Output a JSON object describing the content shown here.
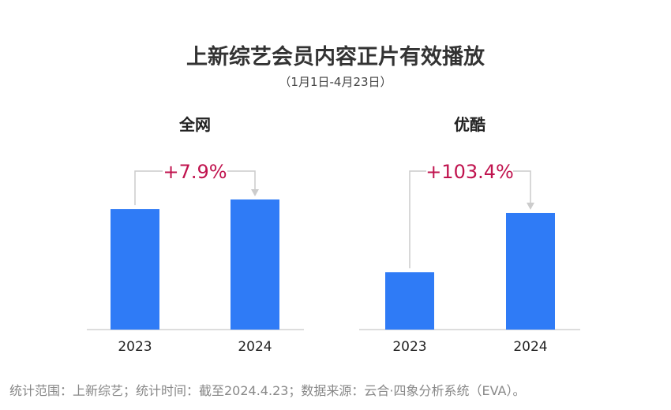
{
  "title": "上新综艺会员内容正片有效播放",
  "subtitle": "（1月1日-4月23日）",
  "footer": "统计范围：上新综艺；统计时间：截至2024.4.23；数据来源：云合·四象分析系统（EVA）。",
  "colors": {
    "bar": "#2f7bf6",
    "growth": "#c0134e",
    "connector": "#cccccc",
    "axis": "#bbbbbb"
  },
  "chart_data": [
    {
      "type": "bar",
      "title": "全网",
      "categories": [
        "2023",
        "2024"
      ],
      "values": [
        100,
        107.9
      ],
      "growth_label": "+7.9%",
      "note": ""
    },
    {
      "type": "bar",
      "title": "优酷",
      "categories": [
        "2023",
        "2024"
      ],
      "values": [
        100,
        203.4
      ],
      "growth_label": "+103.4%"
    }
  ]
}
